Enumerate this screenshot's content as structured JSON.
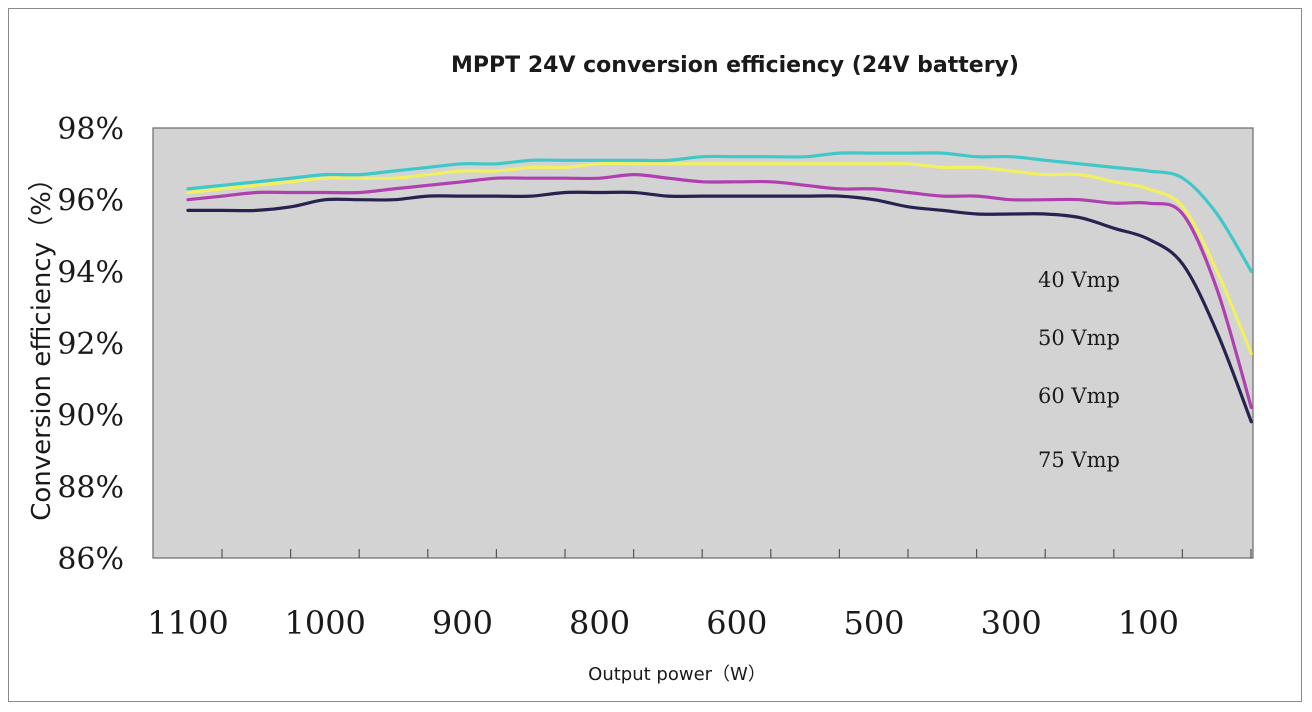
{
  "chart_data": {
    "type": "line",
    "title": "MPPT 24V conversion efficiency (24V battery)",
    "xlabel": "Output power（W）",
    "ylabel": "Conversion efficiency（%）",
    "xtick_labels": [
      "1100",
      "1000",
      "900",
      "800",
      "600",
      "500",
      "300",
      "100"
    ],
    "ytick_labels": [
      "86%",
      "88%",
      "90%",
      "92%",
      "94%",
      "96%",
      "98%"
    ],
    "ylim": [
      86,
      98
    ],
    "grid": false,
    "legend": [
      "40 Vmp",
      "50 Vmp",
      "60 Vmp",
      "75 Vmp"
    ],
    "x_index": [
      0,
      0.5,
      1,
      1.5,
      2,
      2.5,
      3,
      3.5,
      4,
      4.5,
      5,
      5.5,
      6,
      6.5,
      7,
      7.5,
      8,
      8.5,
      9,
      9.5,
      10,
      10.5,
      11,
      11.5,
      12,
      12.5,
      13,
      13.5,
      14,
      14.5,
      15,
      15.5
    ],
    "series": [
      {
        "color": "#40c8c8",
        "values": [
          96.3,
          96.4,
          96.5,
          96.6,
          96.7,
          96.7,
          96.8,
          96.9,
          97.0,
          97.0,
          97.1,
          97.1,
          97.1,
          97.1,
          97.1,
          97.2,
          97.2,
          97.2,
          97.2,
          97.3,
          97.3,
          97.3,
          97.3,
          97.2,
          97.2,
          97.1,
          97.0,
          96.9,
          96.8,
          96.6,
          95.6,
          94.0
        ]
      },
      {
        "color": "#f0f060",
        "values": [
          96.2,
          96.3,
          96.4,
          96.5,
          96.6,
          96.6,
          96.6,
          96.7,
          96.8,
          96.8,
          96.9,
          96.9,
          97.0,
          97.0,
          97.0,
          97.0,
          97.0,
          97.0,
          97.0,
          97.0,
          97.0,
          97.0,
          96.9,
          96.9,
          96.8,
          96.7,
          96.7,
          96.5,
          96.3,
          95.8,
          94.0,
          91.7
        ]
      },
      {
        "color": "#b040b0",
        "values": [
          96.0,
          96.1,
          96.2,
          96.2,
          96.2,
          96.2,
          96.3,
          96.4,
          96.5,
          96.6,
          96.6,
          96.6,
          96.6,
          96.7,
          96.6,
          96.5,
          96.5,
          96.5,
          96.4,
          96.3,
          96.3,
          96.2,
          96.1,
          96.1,
          96.0,
          96.0,
          96.0,
          95.9,
          95.9,
          95.6,
          93.5,
          90.2
        ]
      },
      {
        "color": "#262350",
        "values": [
          95.7,
          95.7,
          95.7,
          95.8,
          96.0,
          96.0,
          96.0,
          96.1,
          96.1,
          96.1,
          96.1,
          96.2,
          96.2,
          96.2,
          96.1,
          96.1,
          96.1,
          96.1,
          96.1,
          96.1,
          96.0,
          95.8,
          95.7,
          95.6,
          95.6,
          95.6,
          95.5,
          95.2,
          94.9,
          94.2,
          92.3,
          89.8
        ]
      }
    ]
  }
}
